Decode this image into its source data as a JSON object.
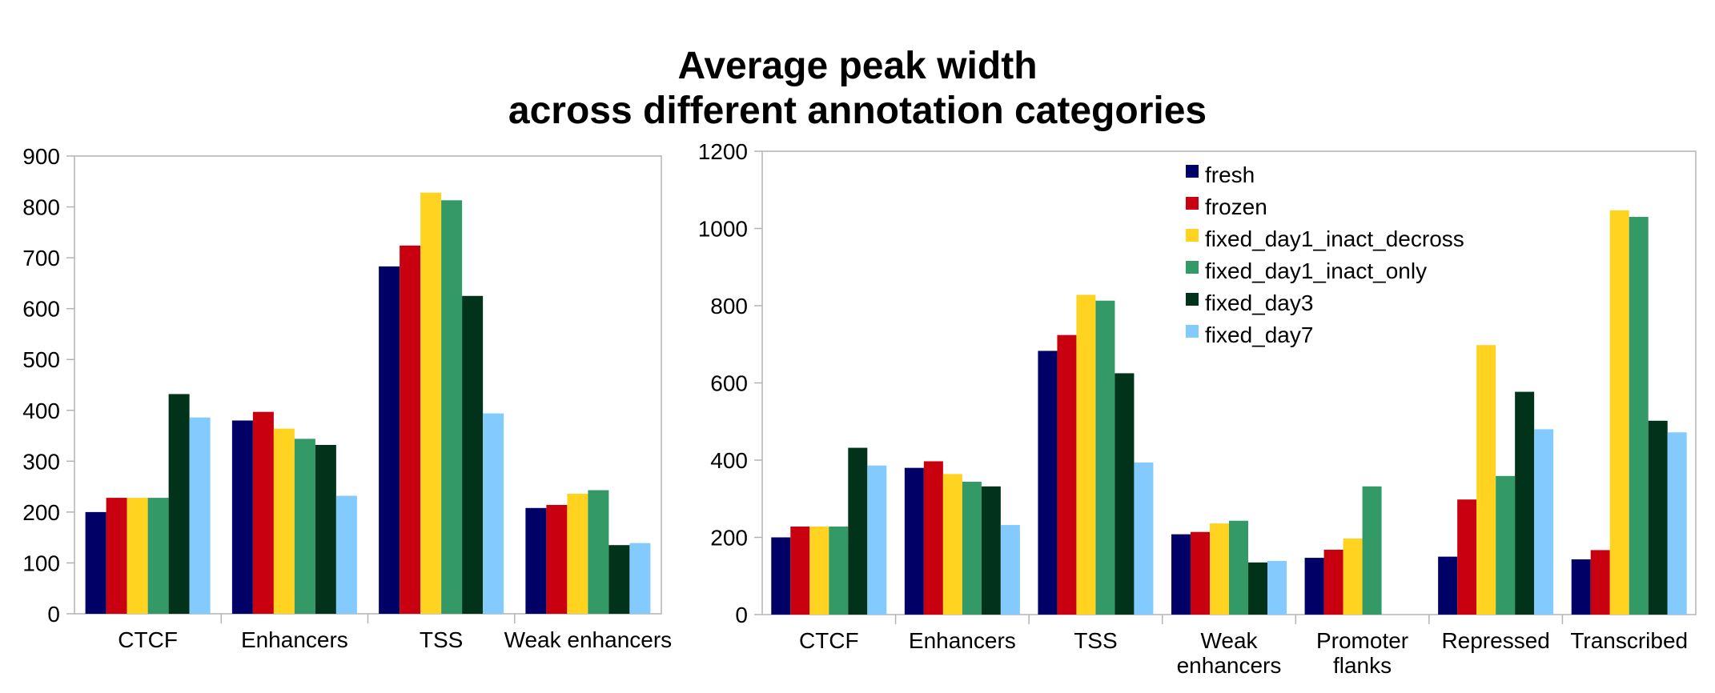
{
  "title": {
    "line1": "Average peak width",
    "line2": "across different annotation categories"
  },
  "colors": {
    "fresh": "#000066",
    "frozen": "#c9000f",
    "fixed_day1_inact_decross": "#ffd320",
    "fixed_day1_inact_only": "#339966",
    "fixed_day3": "#003319",
    "fixed_day7": "#83caff",
    "axis": "#b3b3b3"
  },
  "chart_data": [
    {
      "type": "bar",
      "categories": [
        "CTCF",
        "Enhancers",
        "TSS",
        "Weak enhancers"
      ],
      "ylim": [
        0,
        900
      ],
      "yticks": [
        0,
        100,
        200,
        300,
        400,
        500,
        600,
        700,
        800,
        900
      ],
      "grid": false,
      "legend": "none",
      "series": [
        {
          "name": "fresh",
          "values": [
            200,
            380,
            683,
            208
          ]
        },
        {
          "name": "frozen",
          "values": [
            228,
            397,
            724,
            214
          ]
        },
        {
          "name": "fixed_day1_inact_decross",
          "values": [
            228,
            364,
            828,
            236
          ]
        },
        {
          "name": "fixed_day1_inact_only",
          "values": [
            228,
            344,
            813,
            243
          ]
        },
        {
          "name": "fixed_day3",
          "values": [
            432,
            332,
            625,
            135
          ]
        },
        {
          "name": "fixed_day7",
          "values": [
            386,
            232,
            394,
            139
          ]
        }
      ]
    },
    {
      "type": "bar",
      "categories": [
        "CTCF",
        "Enhancers",
        "TSS",
        "Weak enhancers",
        "Promoter flanks",
        "Repressed",
        "Transcribed"
      ],
      "ylim": [
        0,
        1200
      ],
      "yticks": [
        0,
        200,
        400,
        600,
        800,
        1000,
        1200
      ],
      "grid": false,
      "legend": "top-center",
      "series": [
        {
          "name": "fresh",
          "values": [
            200,
            380,
            683,
            208,
            147,
            150,
            143
          ]
        },
        {
          "name": "frozen",
          "values": [
            228,
            397,
            724,
            214,
            168,
            298,
            167
          ]
        },
        {
          "name": "fixed_day1_inact_decross",
          "values": [
            228,
            364,
            828,
            236,
            197,
            698,
            1047
          ]
        },
        {
          "name": "fixed_day1_inact_only",
          "values": [
            228,
            344,
            813,
            243,
            332,
            359,
            1030
          ]
        },
        {
          "name": "fixed_day3",
          "values": [
            432,
            332,
            625,
            135,
            null,
            577,
            502
          ]
        },
        {
          "name": "fixed_day7",
          "values": [
            386,
            232,
            394,
            139,
            null,
            480,
            472
          ]
        }
      ]
    }
  ]
}
